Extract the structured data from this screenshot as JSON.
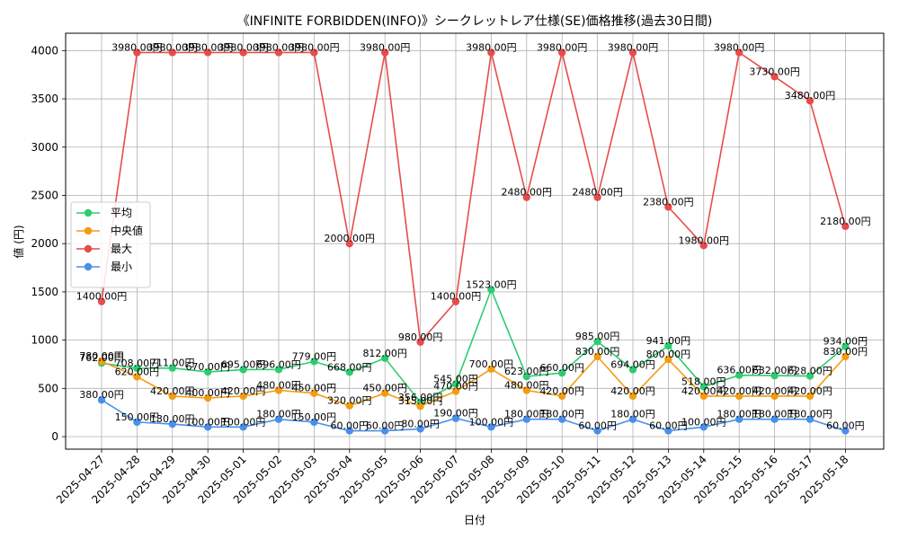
{
  "chart_data": {
    "type": "line",
    "title": "《INFINITE FORBIDDEN(INFO)》シークレットレア仕様(SE)価格推移(過去30日間)",
    "xlabel": "日付",
    "ylabel": "値 (円)",
    "ylim": [
      -130,
      4180
    ],
    "yticks": [
      0,
      500,
      1000,
      1500,
      2000,
      2500,
      3000,
      3500,
      4000
    ],
    "grid": true,
    "legend_position": "center-left",
    "value_suffix": "円",
    "categories": [
      "2025-04-27",
      "2025-04-28",
      "2025-04-29",
      "2025-04-30",
      "2025-05-01",
      "2025-05-02",
      "2025-05-03",
      "2025-05-04",
      "2025-05-05",
      "2025-05-06",
      "2025-05-07",
      "2025-05-08",
      "2025-05-09",
      "2025-05-10",
      "2025-05-11",
      "2025-05-12",
      "2025-05-13",
      "2025-05-14",
      "2025-05-15",
      "2025-05-16",
      "2025-05-17",
      "2025-05-18"
    ],
    "series": [
      {
        "name": "平均",
        "color": "#2ecc71",
        "values": [
          762,
          708,
          711,
          670,
          695,
          696,
          779,
          668,
          812,
          356,
          545,
          1523,
          623,
          660,
          985,
          694,
          941,
          518,
          636,
          632,
          628,
          934
        ]
      },
      {
        "name": "中央値",
        "color": "#f39c12",
        "values": [
          780,
          620,
          420,
          400,
          420,
          480,
          450,
          320,
          450,
          315,
          470,
          700,
          480,
          420,
          830,
          420,
          800,
          420,
          420,
          420,
          420,
          830
        ]
      },
      {
        "name": "最大",
        "color": "#e74c4c",
        "values": [
          1400,
          3980,
          3980,
          3980,
          3980,
          3980,
          3980,
          2000,
          3980,
          980,
          1400,
          3980,
          2480,
          3980,
          2480,
          3980,
          2380,
          1980,
          3980,
          3730,
          3480,
          2180
        ]
      },
      {
        "name": "最小",
        "color": "#4a90e8",
        "values": [
          380,
          150,
          130,
          100,
          100,
          180,
          150,
          60,
          60,
          80,
          190,
          100,
          180,
          180,
          60,
          180,
          60,
          100,
          180,
          180,
          180,
          60
        ]
      }
    ]
  }
}
